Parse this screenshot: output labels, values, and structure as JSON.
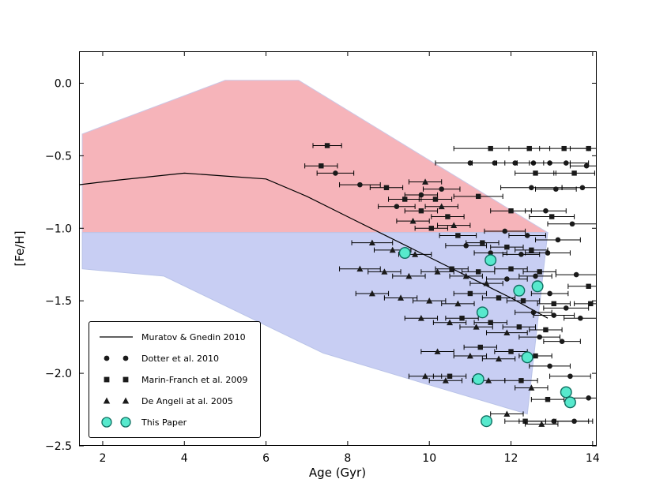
{
  "figure": {
    "background": "#ffffff"
  },
  "chart_data": {
    "type": "scatter",
    "title": "",
    "xlabel": "Age (Gyr)",
    "ylabel": "[Fe/H]",
    "xlim": [
      1.42,
      14.1
    ],
    "ylim": [
      -2.5,
      0.22
    ],
    "grid": false,
    "legend_position": "lower left",
    "xticks": {
      "values": [
        2,
        4,
        6,
        8,
        10,
        12,
        14
      ],
      "labels": [
        "2",
        "4",
        "6",
        "8",
        "10",
        "12",
        "14"
      ]
    },
    "yticks": {
      "values": [
        0.0,
        -0.5,
        -1.0,
        -1.5,
        -2.0,
        -2.5
      ],
      "labels": [
        "0.0",
        "−0.5",
        "−1.0",
        "−1.5",
        "−2.0",
        "−2.5"
      ]
    },
    "regions": [
      {
        "name": "red-band",
        "fill": "#f6b4ba",
        "edge": "#ccc6e4",
        "points": [
          [
            1.5,
            -0.35
          ],
          [
            5.0,
            0.02
          ],
          [
            6.8,
            0.02
          ],
          [
            12.9,
            -1.03
          ],
          [
            1.5,
            -1.03
          ]
        ]
      },
      {
        "name": "blue-band",
        "fill": "#c8cef3",
        "edge": "#b9c3e8",
        "points": [
          [
            1.5,
            -1.03
          ],
          [
            12.9,
            -1.03
          ],
          [
            12.4,
            -2.28
          ],
          [
            10.0,
            -2.08
          ],
          [
            7.4,
            -1.86
          ],
          [
            3.5,
            -1.33
          ],
          [
            1.5,
            -1.28
          ]
        ]
      }
    ],
    "line_series": {
      "name": "Muratov & Gnedin 2010",
      "color": "#000000",
      "points": [
        [
          1.42,
          -0.7
        ],
        [
          2.3,
          -0.67
        ],
        [
          4.0,
          -0.62
        ],
        [
          5.0,
          -0.64
        ],
        [
          6.0,
          -0.66
        ],
        [
          7.0,
          -0.78
        ],
        [
          8.0,
          -0.92
        ],
        [
          9.0,
          -1.06
        ],
        [
          10.0,
          -1.2
        ],
        [
          11.0,
          -1.34
        ],
        [
          12.0,
          -1.48
        ],
        [
          12.9,
          -1.62
        ]
      ]
    },
    "series": [
      {
        "name": "Dotter et al. 2010",
        "marker": "circle",
        "color": "#1a1a1a",
        "edge": "#000000",
        "points": [
          [
            7.7,
            -0.62,
            0.45
          ],
          [
            8.3,
            -0.7,
            0.5
          ],
          [
            9.2,
            -0.85,
            0.45
          ],
          [
            9.8,
            -0.77,
            0.4
          ],
          [
            10.3,
            -0.73,
            0.45
          ],
          [
            11.0,
            -0.55,
            0.85
          ],
          [
            11.6,
            -0.55,
            0.55
          ],
          [
            12.1,
            -0.55,
            0.45
          ],
          [
            12.55,
            -0.55,
            0.4
          ],
          [
            12.95,
            -0.55,
            0.5
          ],
          [
            13.35,
            -0.55,
            0.55
          ],
          [
            13.85,
            -0.57,
            0.4
          ],
          [
            12.5,
            -0.72,
            0.75
          ],
          [
            13.1,
            -0.73,
            0.5
          ],
          [
            13.75,
            -0.72,
            0.5
          ],
          [
            12.85,
            -0.88,
            0.5
          ],
          [
            13.5,
            -0.97,
            0.6
          ],
          [
            11.85,
            -1.02,
            0.5
          ],
          [
            12.4,
            -1.05,
            0.45
          ],
          [
            13.15,
            -1.08,
            0.55
          ],
          [
            10.9,
            -1.12,
            0.5
          ],
          [
            11.5,
            -1.17,
            0.4
          ],
          [
            12.25,
            -1.18,
            0.45
          ],
          [
            12.9,
            -1.17,
            0.55
          ],
          [
            13.6,
            -1.32,
            0.5
          ],
          [
            12.6,
            -1.33,
            0.4
          ],
          [
            11.9,
            -1.35,
            0.5
          ],
          [
            12.95,
            -1.45,
            0.45
          ],
          [
            13.35,
            -1.55,
            0.55
          ],
          [
            12.55,
            -1.58,
            0.45
          ],
          [
            13.05,
            -1.6,
            0.5
          ],
          [
            13.7,
            -1.62,
            0.4
          ],
          [
            12.7,
            -1.75,
            0.5
          ],
          [
            13.25,
            -1.78,
            0.45
          ],
          [
            12.95,
            -1.95,
            0.5
          ],
          [
            13.45,
            -2.02,
            0.5
          ],
          [
            13.9,
            -2.17,
            0.5
          ],
          [
            13.05,
            -2.33,
            0.85
          ],
          [
            13.55,
            -2.33,
            0.45
          ]
        ]
      },
      {
        "name": "Marin-Franch et al. 2009",
        "marker": "square",
        "color": "#1a1a1a",
        "edge": "#000000",
        "points": [
          [
            7.5,
            -0.43,
            0.35
          ],
          [
            7.35,
            -0.57,
            0.4
          ],
          [
            8.95,
            -0.72,
            0.4
          ],
          [
            9.4,
            -0.8,
            0.4
          ],
          [
            9.8,
            -0.88,
            0.4
          ],
          [
            10.15,
            -0.8,
            0.4
          ],
          [
            10.45,
            -0.92,
            0.4
          ],
          [
            10.05,
            -1.0,
            0.4
          ],
          [
            11.5,
            -0.45,
            0.9
          ],
          [
            12.45,
            -0.45,
            0.5
          ],
          [
            13.3,
            -0.45,
            0.6
          ],
          [
            13.9,
            -0.45,
            0.45
          ],
          [
            12.6,
            -0.62,
            0.5
          ],
          [
            13.55,
            -0.62,
            0.5
          ],
          [
            11.2,
            -0.78,
            0.6
          ],
          [
            12.0,
            -0.88,
            0.5
          ],
          [
            13.0,
            -0.92,
            0.55
          ],
          [
            10.7,
            -1.05,
            0.45
          ],
          [
            11.3,
            -1.1,
            0.4
          ],
          [
            11.9,
            -1.13,
            0.4
          ],
          [
            12.5,
            -1.15,
            0.4
          ],
          [
            10.55,
            -1.28,
            0.4
          ],
          [
            11.2,
            -1.3,
            0.4
          ],
          [
            12.0,
            -1.28,
            0.4
          ],
          [
            12.7,
            -1.3,
            0.4
          ],
          [
            13.9,
            -1.4,
            0.5
          ],
          [
            11.0,
            -1.45,
            0.4
          ],
          [
            11.7,
            -1.48,
            0.4
          ],
          [
            12.3,
            -1.5,
            0.4
          ],
          [
            13.05,
            -1.52,
            0.4
          ],
          [
            13.95,
            -1.52,
            0.4
          ],
          [
            10.8,
            -1.62,
            0.4
          ],
          [
            11.5,
            -1.65,
            0.4
          ],
          [
            12.2,
            -1.68,
            0.4
          ],
          [
            12.85,
            -1.7,
            0.4
          ],
          [
            11.25,
            -1.82,
            0.4
          ],
          [
            12.0,
            -1.85,
            0.4
          ],
          [
            12.6,
            -1.88,
            0.4
          ],
          [
            10.5,
            -2.02,
            0.4
          ],
          [
            12.25,
            -2.05,
            0.4
          ],
          [
            12.9,
            -2.18,
            0.4
          ],
          [
            12.35,
            -2.33,
            0.5
          ]
        ]
      },
      {
        "name": "De Angeli at al. 2005",
        "marker": "triangle",
        "color": "#1a1a1a",
        "edge": "#000000",
        "points": [
          [
            9.9,
            -0.68,
            0.4
          ],
          [
            10.3,
            -0.85,
            0.4
          ],
          [
            9.6,
            -0.95,
            0.4
          ],
          [
            10.6,
            -0.98,
            0.4
          ],
          [
            8.6,
            -1.1,
            0.5
          ],
          [
            9.1,
            -1.15,
            0.45
          ],
          [
            9.65,
            -1.18,
            0.4
          ],
          [
            8.3,
            -1.28,
            0.5
          ],
          [
            8.9,
            -1.3,
            0.4
          ],
          [
            9.5,
            -1.33,
            0.4
          ],
          [
            10.2,
            -1.3,
            0.4
          ],
          [
            10.9,
            -1.33,
            0.4
          ],
          [
            8.6,
            -1.45,
            0.4
          ],
          [
            9.3,
            -1.48,
            0.4
          ],
          [
            10.0,
            -1.5,
            0.4
          ],
          [
            10.7,
            -1.52,
            0.4
          ],
          [
            11.4,
            -1.38,
            0.4
          ],
          [
            9.8,
            -1.62,
            0.4
          ],
          [
            10.5,
            -1.65,
            0.4
          ],
          [
            11.15,
            -1.68,
            0.4
          ],
          [
            11.9,
            -1.72,
            0.5
          ],
          [
            10.2,
            -1.85,
            0.4
          ],
          [
            11.0,
            -1.88,
            0.4
          ],
          [
            11.7,
            -1.9,
            0.4
          ],
          [
            9.9,
            -2.02,
            0.4
          ],
          [
            10.4,
            -2.05,
            0.4
          ],
          [
            11.45,
            -2.05,
            0.4
          ],
          [
            12.5,
            -2.1,
            0.4
          ],
          [
            11.9,
            -2.28,
            0.4
          ],
          [
            12.75,
            -2.35,
            0.4
          ]
        ]
      },
      {
        "name": "This Paper",
        "marker": "circle-large",
        "color": "#57e9cd",
        "edge": "#0f6e60",
        "points": [
          [
            9.4,
            -1.17,
            0
          ],
          [
            11.5,
            -1.22,
            0
          ],
          [
            12.2,
            -1.43,
            0
          ],
          [
            12.65,
            -1.4,
            0
          ],
          [
            11.3,
            -1.58,
            0
          ],
          [
            12.4,
            -1.89,
            0
          ],
          [
            11.2,
            -2.04,
            0
          ],
          [
            13.35,
            -2.13,
            0
          ],
          [
            13.45,
            -2.2,
            0
          ],
          [
            11.4,
            -2.33,
            0
          ]
        ]
      }
    ]
  },
  "legend": {
    "entries": [
      {
        "label": "Muratov & Gnedin 2010"
      },
      {
        "label": "Dotter et al. 2010"
      },
      {
        "label": "Marin-Franch et al. 2009"
      },
      {
        "label": "De Angeli at al. 2005"
      },
      {
        "label": "This Paper"
      }
    ]
  }
}
